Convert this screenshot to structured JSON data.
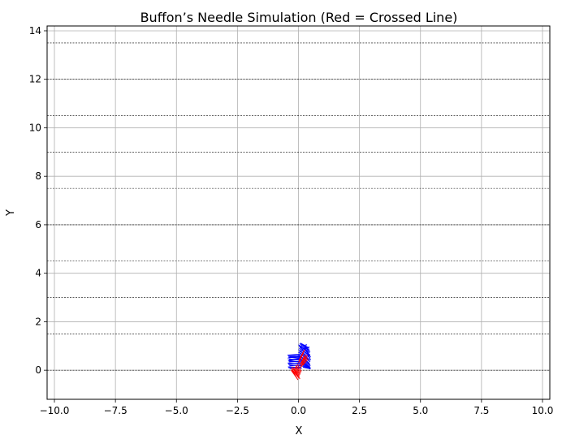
{
  "chart_data": {
    "type": "line",
    "title": "Buffon’s Needle Simulation (Red = Crossed Line)",
    "xlabel": "X",
    "ylabel": "Y",
    "xlim": [
      -10.3,
      10.3
    ],
    "ylim": [
      -1.2,
      14.2
    ],
    "xticks": [
      -10.0,
      -7.5,
      -5.0,
      -2.5,
      0.0,
      2.5,
      5.0,
      7.5,
      10.0
    ],
    "xtick_labels": [
      "−10.0",
      "−7.5",
      "−5.0",
      "−2.5",
      "0.0",
      "2.5",
      "5.0",
      "7.5",
      "10.0"
    ],
    "yticks": [
      0,
      2,
      4,
      6,
      8,
      10,
      12,
      14
    ],
    "ytick_labels": [
      "0",
      "2",
      "4",
      "6",
      "8",
      "10",
      "12",
      "14"
    ],
    "grid": true,
    "reference_lines": [
      0,
      1.5,
      3.0,
      4.5,
      6.0,
      7.5,
      9.0,
      10.5,
      12.0,
      13.5
    ],
    "colors": {
      "not_crossed": "#0000ff",
      "crossed": "#ff0000",
      "grid": "#b0b0b0",
      "reference_line": "#000000"
    },
    "needles_not_crossed": [
      [
        -0.45,
        0.62,
        0.05,
        0.66
      ],
      [
        -0.42,
        0.58,
        0.08,
        0.55
      ],
      [
        -0.4,
        0.54,
        0.1,
        0.48
      ],
      [
        -0.44,
        0.5,
        0.06,
        0.58
      ],
      [
        -0.38,
        0.46,
        0.12,
        0.42
      ],
      [
        -0.43,
        0.42,
        0.07,
        0.47
      ],
      [
        -0.41,
        0.38,
        0.09,
        0.33
      ],
      [
        -0.39,
        0.34,
        0.11,
        0.37
      ],
      [
        -0.44,
        0.3,
        0.06,
        0.27
      ],
      [
        -0.42,
        0.26,
        0.08,
        0.3
      ],
      [
        -0.4,
        0.22,
        0.1,
        0.19
      ],
      [
        -0.37,
        0.18,
        0.13,
        0.22
      ],
      [
        -0.43,
        0.14,
        0.07,
        0.11
      ],
      [
        -0.41,
        0.1,
        0.09,
        0.14
      ],
      [
        -0.36,
        0.06,
        0.14,
        0.09
      ],
      [
        -0.4,
        0.62,
        0.1,
        0.6
      ],
      [
        -0.35,
        0.55,
        0.15,
        0.52
      ],
      [
        -0.38,
        0.4,
        0.12,
        0.44
      ],
      [
        0.0,
        1.05,
        0.4,
        0.78
      ],
      [
        0.02,
        1.0,
        0.45,
        0.72
      ],
      [
        0.05,
        0.95,
        0.42,
        0.62
      ],
      [
        0.03,
        0.9,
        0.46,
        0.58
      ],
      [
        0.0,
        0.85,
        0.48,
        0.5
      ],
      [
        0.06,
        0.8,
        0.44,
        0.44
      ],
      [
        0.02,
        0.75,
        0.47,
        0.4
      ],
      [
        0.04,
        0.7,
        0.48,
        0.34
      ],
      [
        0.0,
        0.65,
        0.46,
        0.28
      ],
      [
        0.05,
        0.58,
        0.48,
        0.22
      ],
      [
        0.03,
        0.52,
        0.49,
        0.18
      ],
      [
        0.06,
        0.46,
        0.47,
        0.14
      ],
      [
        0.08,
        0.4,
        0.49,
        0.1
      ],
      [
        0.1,
        0.34,
        0.48,
        0.08
      ],
      [
        0.12,
        0.28,
        0.5,
        0.06
      ],
      [
        0.14,
        0.22,
        0.49,
        0.05
      ],
      [
        0.16,
        0.16,
        0.5,
        0.07
      ],
      [
        0.18,
        0.12,
        0.48,
        0.06
      ],
      [
        0.05,
        1.1,
        0.3,
        0.88
      ],
      [
        0.08,
        1.12,
        0.38,
        0.95
      ],
      [
        0.12,
        1.08,
        0.44,
        0.9
      ],
      [
        0.03,
        0.98,
        0.35,
        1.05
      ],
      [
        0.1,
        0.92,
        0.42,
        0.86
      ],
      [
        0.15,
        0.86,
        0.45,
        0.96
      ],
      [
        0.2,
        1.02,
        0.46,
        0.82
      ],
      [
        0.25,
        0.96,
        0.48,
        0.74
      ],
      [
        0.0,
        0.72,
        0.3,
        0.95
      ],
      [
        0.22,
        0.88,
        0.48,
        0.62
      ],
      [
        0.3,
        0.8,
        0.5,
        0.54
      ],
      [
        0.35,
        0.7,
        0.5,
        0.42
      ]
    ],
    "needles_crossed": [
      [
        -0.28,
        0.05,
        -0.05,
        -0.35
      ],
      [
        -0.22,
        0.1,
        0.0,
        -0.3
      ],
      [
        -0.18,
        0.08,
        0.04,
        -0.25
      ],
      [
        -0.25,
        -0.02,
        -0.02,
        -0.4
      ],
      [
        -0.15,
        0.12,
        0.06,
        -0.2
      ],
      [
        -0.3,
        0.0,
        -0.1,
        -0.28
      ],
      [
        -0.2,
        -0.05,
        0.02,
        -0.32
      ],
      [
        -0.12,
        0.15,
        0.08,
        -0.15
      ],
      [
        -0.26,
        0.14,
        -0.04,
        -0.22
      ],
      [
        -0.1,
        0.2,
        0.1,
        -0.1
      ],
      [
        -0.05,
        0.25,
        0.12,
        -0.05
      ],
      [
        -0.3,
        0.08,
        -0.08,
        -0.18
      ],
      [
        -0.16,
        0.0,
        0.06,
        -0.36
      ],
      [
        -0.22,
        0.04,
        0.02,
        -0.12
      ],
      [
        0.0,
        0.3,
        0.2,
        0.7
      ],
      [
        0.05,
        0.2,
        0.25,
        0.6
      ],
      [
        0.08,
        0.1,
        0.28,
        0.55
      ],
      [
        0.02,
        0.4,
        0.22,
        0.8
      ],
      [
        0.1,
        0.25,
        0.3,
        0.65
      ],
      [
        0.12,
        0.15,
        0.35,
        0.52
      ],
      [
        0.15,
        0.3,
        0.38,
        0.62
      ],
      [
        0.06,
        0.5,
        0.26,
        0.85
      ],
      [
        0.18,
        0.2,
        0.4,
        0.48
      ],
      [
        0.03,
        0.35,
        0.18,
        0.72
      ]
    ]
  }
}
